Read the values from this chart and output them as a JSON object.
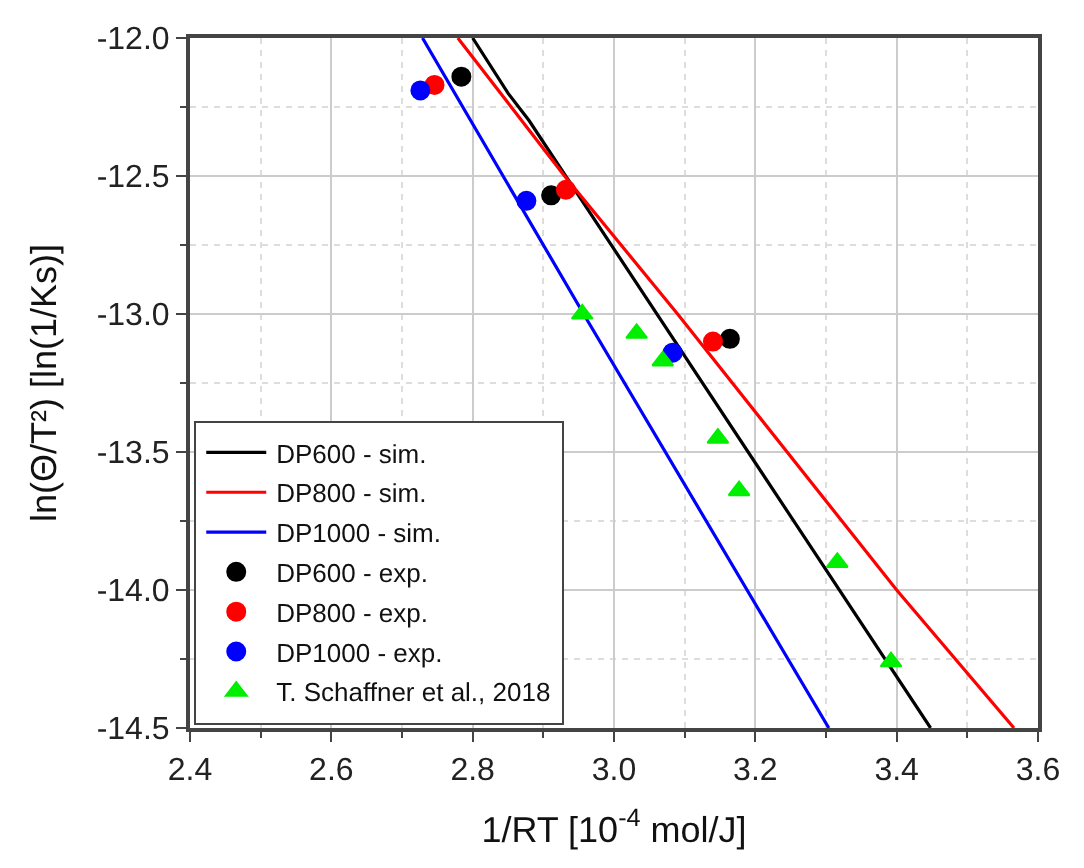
{
  "chart_data": {
    "type": "line",
    "xlabel": "1/RT [10$^{-4}$ mol/J]",
    "ylabel": "ln(Θ/T²) [ln(1/Ks)]",
    "xlim": [
      2.4,
      3.6
    ],
    "xticks": [
      {
        "value": 2.4,
        "label": "2.4"
      },
      {
        "value": 2.6,
        "label": "2.6"
      },
      {
        "value": 2.8,
        "label": "2.8"
      },
      {
        "value": 3.0,
        "label": "3.0"
      },
      {
        "value": 3.2,
        "label": "3.2"
      },
      {
        "value": 3.4,
        "label": "3.4"
      },
      {
        "value": 3.6,
        "label": "3.6"
      }
    ],
    "ylim": [
      -14.5,
      -12.0
    ],
    "yticks": [
      {
        "value": -14.5,
        "label": "-14.5"
      },
      {
        "value": -14.0,
        "label": "-14.0"
      },
      {
        "value": -13.5,
        "label": "-13.5"
      },
      {
        "value": -13.0,
        "label": "-13.0"
      },
      {
        "value": -12.5,
        "label": "-12.5"
      },
      {
        "value": -12.0,
        "label": "-12.0"
      }
    ],
    "grid": true,
    "legend": "bottom left",
    "series": [
      {
        "name": "DP600 - sim.",
        "color": "#000000",
        "marker": "none",
        "line_style": "solid",
        "x": [
          2.8,
          2.85,
          2.88,
          3.448
        ],
        "values": [
          -12.0,
          -12.2,
          -12.3,
          -14.5
        ]
      },
      {
        "name": "DP800 - sim.",
        "color": "#ff0000",
        "marker": "none",
        "line_style": "solid",
        "x": [
          2.779,
          2.93,
          3.09,
          3.4,
          3.566
        ],
        "values": [
          -12.0,
          -12.5,
          -13.0,
          -14.0,
          -14.5
        ]
      },
      {
        "name": "DP1000 - sim.",
        "color": "#0000ff",
        "marker": "none",
        "line_style": "solid",
        "x": [
          2.729,
          2.957,
          3.304
        ],
        "values": [
          -12.0,
          -13.0,
          -14.5
        ]
      },
      {
        "name": "DP600 - exp.",
        "type": "scatter",
        "color": "#000000",
        "marker": "circle",
        "x": [
          2.784,
          2.911,
          3.164
        ],
        "values": [
          -12.14,
          -12.57,
          -13.09
        ]
      },
      {
        "name": "DP800 - exp.",
        "type": "scatter",
        "color": "#ff0000",
        "marker": "circle",
        "x": [
          2.746,
          2.932,
          3.14
        ],
        "values": [
          -12.17,
          -12.55,
          -13.1
        ]
      },
      {
        "name": "DP1000 - exp.",
        "type": "scatter",
        "color": "#0000ff",
        "marker": "circle",
        "x": [
          2.726,
          2.876,
          3.083
        ],
        "values": [
          -12.19,
          -12.59,
          -13.14
        ]
      },
      {
        "name": "T. Schaffner et al., 2018",
        "type": "scatter",
        "color": "#00ee00",
        "marker": "triangle",
        "x": [
          2.955,
          3.032,
          3.069,
          3.147,
          3.177,
          3.316,
          3.392
        ],
        "values": [
          -13.0,
          -13.07,
          -13.17,
          -13.45,
          -13.64,
          -13.9,
          -14.26
        ]
      }
    ]
  }
}
